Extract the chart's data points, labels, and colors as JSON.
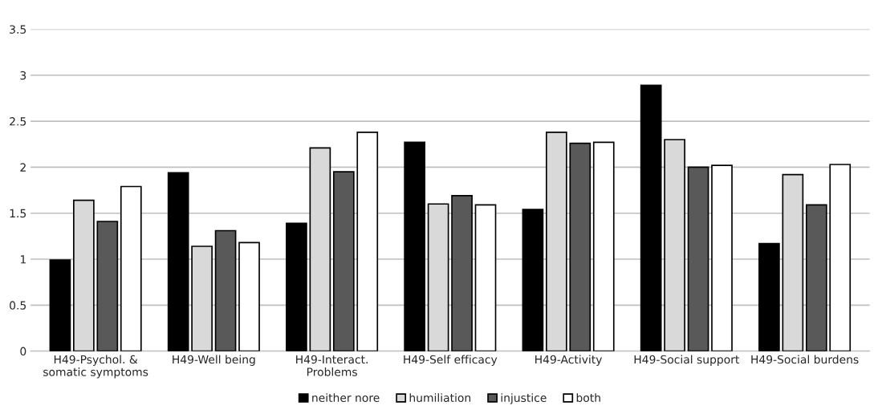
{
  "chart_data": {
    "type": "bar",
    "categories": [
      "H49-Psychol. &\nsomatic symptoms",
      "H49-Well being",
      "H49-Interact.\nProblems",
      "H49-Self efficacy",
      "H49-Activity",
      "H49-Social support",
      "H49-Social burdens"
    ],
    "series": [
      {
        "name": "neither nore",
        "color": "#000000",
        "values": [
          0.99,
          1.94,
          1.39,
          2.27,
          1.54,
          2.89,
          1.17
        ]
      },
      {
        "name": "humiliation",
        "color": "#d9d9d9",
        "values": [
          1.64,
          1.14,
          2.21,
          1.6,
          2.38,
          2.3,
          1.92
        ]
      },
      {
        "name": "injustice",
        "color": "#595959",
        "values": [
          1.41,
          1.31,
          1.95,
          1.69,
          2.26,
          2.0,
          1.59
        ]
      },
      {
        "name": "both",
        "color": "#ffffff",
        "values": [
          1.79,
          1.18,
          2.38,
          1.59,
          2.27,
          2.02,
          2.03
        ]
      }
    ],
    "ylim": [
      0,
      3.5
    ],
    "yticks": [
      0,
      0.5,
      1,
      1.5,
      2,
      2.5,
      3,
      3.5
    ],
    "grid": "y",
    "legend": "bottom"
  }
}
